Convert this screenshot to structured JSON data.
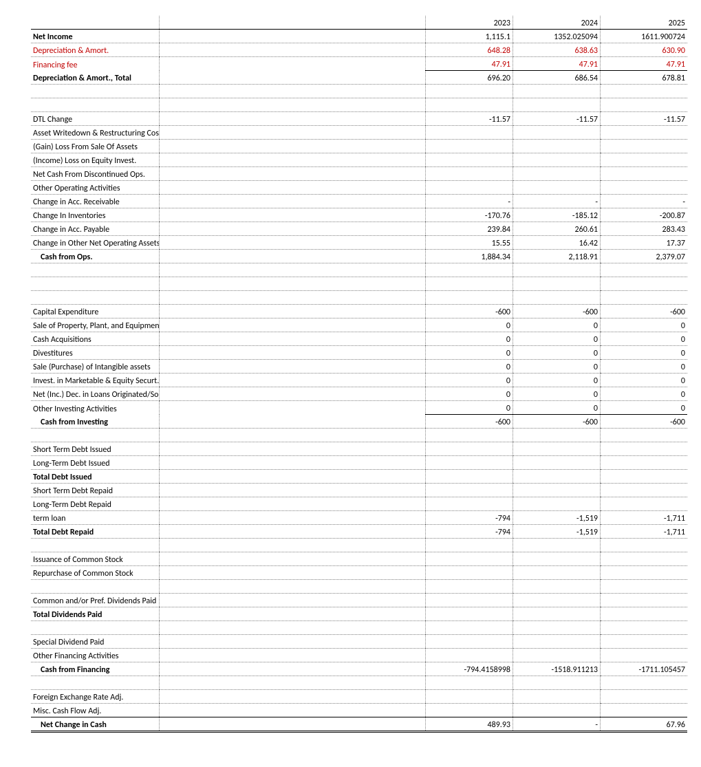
{
  "years": [
    "2023",
    "2024",
    "2025"
  ],
  "rows": [
    {
      "label": "",
      "class": "hdr-row",
      "v": [
        "2023",
        "2024",
        "2025"
      ],
      "labelClass": ""
    },
    {
      "label": "Net Income",
      "class": "dotted-bottom",
      "labelClass": "bold",
      "v": [
        "1,115.1",
        "1352.025094",
        "1611.900724"
      ]
    },
    {
      "label": "Depreciation & Amort.",
      "class": "dotted-bottom",
      "labelClass": "red",
      "v": [
        "648.28",
        "638.63",
        "630.90"
      ],
      "valClass": "red"
    },
    {
      "label": "Financing fee",
      "class": "",
      "labelClass": "red",
      "v": [
        "47.91",
        "47.91",
        "47.91"
      ],
      "valClass": "red"
    },
    {
      "label": "Depreciation & Amort., Total",
      "class": "dotted-bottom subtot",
      "labelClass": "bold",
      "v": [
        "696.20",
        "686.54",
        "678.81"
      ]
    },
    {
      "label": "",
      "class": "dotted-bottom empty-row",
      "v": [
        "",
        "",
        ""
      ]
    },
    {
      "label": "",
      "class": "dotted-bottom empty-row",
      "v": [
        "",
        "",
        ""
      ]
    },
    {
      "label": "DTL Change",
      "class": "dotted-bottom",
      "v": [
        "-11.57",
        "-11.57",
        "-11.57"
      ]
    },
    {
      "label": "Asset Writedown & Restructuring Costs",
      "class": "dotted-bottom",
      "v": [
        "",
        "",
        ""
      ]
    },
    {
      "label": "(Gain) Loss From Sale Of Assets",
      "class": "dotted-bottom",
      "v": [
        "",
        "",
        ""
      ]
    },
    {
      "label": "(Income) Loss on Equity Invest.",
      "class": "dotted-bottom",
      "v": [
        "",
        "",
        ""
      ]
    },
    {
      "label": "Net Cash From Discontinued Ops.",
      "class": "dotted-bottom",
      "v": [
        "",
        "",
        ""
      ]
    },
    {
      "label": "Other Operating Activities",
      "class": "dotted-bottom",
      "v": [
        "",
        "",
        ""
      ]
    },
    {
      "label": "Change in Acc. Receivable",
      "class": "dotted-bottom",
      "v": [
        "-",
        "-",
        "-"
      ]
    },
    {
      "label": "Change In Inventories",
      "class": "dotted-bottom",
      "v": [
        "-170.76",
        "-185.12",
        "-200.87"
      ]
    },
    {
      "label": "Change in Acc. Payable",
      "class": "dotted-bottom",
      "v": [
        "239.84",
        "260.61",
        "283.43"
      ]
    },
    {
      "label": "Change in Other Net Operating Assets",
      "class": "dotted-bottom",
      "v": [
        "15.55",
        "16.42",
        "17.37"
      ]
    },
    {
      "label": "Cash from Ops.",
      "class": "dotted-bottom",
      "labelClass": "bold indent1",
      "v": [
        "1,884.34",
        "2,118.91",
        "2,379.07"
      ]
    },
    {
      "label": "",
      "class": "dotted-bottom empty-row",
      "v": [
        "",
        "",
        ""
      ]
    },
    {
      "label": "",
      "class": "dotted-bottom empty-row",
      "v": [
        "",
        "",
        ""
      ]
    },
    {
      "label": "",
      "class": "dotted-bottom empty-row",
      "v": [
        "",
        "",
        ""
      ]
    },
    {
      "label": "Capital Expenditure",
      "class": "dotted-bottom",
      "v": [
        "-600",
        "-600",
        "-600"
      ]
    },
    {
      "label": "Sale of Property, Plant, and Equipment",
      "class": "dotted-bottom",
      "v": [
        "0",
        "0",
        "0"
      ]
    },
    {
      "label": "Cash Acquisitions",
      "class": "dotted-bottom",
      "v": [
        "0",
        "0",
        "0"
      ]
    },
    {
      "label": "Divestitures",
      "class": "dotted-bottom",
      "v": [
        "0",
        "0",
        "0"
      ]
    },
    {
      "label": "Sale (Purchase) of Intangible assets",
      "class": "dotted-bottom",
      "v": [
        "0",
        "0",
        "0"
      ]
    },
    {
      "label": "Invest. in Marketable & Equity Securt.",
      "class": "dotted-bottom",
      "v": [
        "0",
        "0",
        "0"
      ]
    },
    {
      "label": "Net (Inc.) Dec. in Loans Originated/Sold",
      "class": "dotted-bottom",
      "v": [
        "0",
        "0",
        "0"
      ]
    },
    {
      "label": "Other Investing Activities",
      "class": "",
      "v": [
        "0",
        "0",
        "0"
      ]
    },
    {
      "label": "Cash from Investing",
      "class": "dotted-bottom subtot",
      "labelClass": "bold indent1",
      "v": [
        "-600",
        "-600",
        "-600"
      ]
    },
    {
      "label": "",
      "class": "dotted-bottom empty-row",
      "v": [
        "",
        "",
        ""
      ]
    },
    {
      "label": "Short Term Debt Issued",
      "class": "dotted-bottom",
      "v": [
        "",
        "",
        ""
      ]
    },
    {
      "label": "Long-Term Debt Issued",
      "class": "dotted-bottom",
      "v": [
        "",
        "",
        ""
      ]
    },
    {
      "label": "Total Debt Issued",
      "class": "dotted-bottom",
      "labelClass": "bold",
      "v": [
        "",
        "",
        ""
      ]
    },
    {
      "label": "Short Term Debt Repaid",
      "class": "dotted-bottom",
      "v": [
        "",
        "",
        ""
      ]
    },
    {
      "label": "Long-Term Debt Repaid",
      "class": "dotted-bottom",
      "v": [
        "",
        "",
        ""
      ]
    },
    {
      "label": "term loan",
      "class": "dotted-bottom",
      "v": [
        "-794",
        "-1,519",
        "-1,711"
      ]
    },
    {
      "label": "Total Debt Repaid",
      "class": "dotted-bottom",
      "labelClass": "bold",
      "v": [
        "-794",
        "-1,519",
        "-1,711"
      ]
    },
    {
      "label": "",
      "class": "dotted-bottom empty-row",
      "v": [
        "",
        "",
        ""
      ]
    },
    {
      "label": "Issuance of Common Stock",
      "class": "dotted-bottom",
      "v": [
        "",
        "",
        ""
      ]
    },
    {
      "label": "Repurchase of Common Stock",
      "class": "dotted-bottom",
      "v": [
        "",
        "",
        ""
      ]
    },
    {
      "label": "",
      "class": "dotted-bottom empty-row",
      "v": [
        "",
        "",
        ""
      ]
    },
    {
      "label": "Common and/or Pref. Dividends Paid",
      "class": "dotted-bottom",
      "v": [
        "",
        "",
        ""
      ]
    },
    {
      "label": "Total Dividends Paid",
      "class": "dotted-bottom",
      "labelClass": "bold",
      "v": [
        "",
        "",
        ""
      ]
    },
    {
      "label": "",
      "class": "dotted-bottom empty-row",
      "v": [
        "",
        "",
        ""
      ]
    },
    {
      "label": "Special Dividend Paid",
      "class": "dotted-bottom",
      "v": [
        "",
        "",
        ""
      ]
    },
    {
      "label": "Other Financing Activities",
      "class": "dotted-bottom",
      "v": [
        "",
        "",
        ""
      ]
    },
    {
      "label": "Cash from Financing",
      "class": "dotted-bottom",
      "labelClass": "bold indent1",
      "v": [
        "-794.4158998",
        "-1518.911213",
        "-1711.105457"
      ]
    },
    {
      "label": "",
      "class": "dotted-bottom empty-row",
      "v": [
        "",
        "",
        ""
      ]
    },
    {
      "label": "Foreign Exchange Rate Adj.",
      "class": "dotted-bottom",
      "v": [
        "",
        "",
        ""
      ]
    },
    {
      "label": "Misc. Cash Flow Adj.",
      "class": "",
      "v": [
        "",
        "",
        ""
      ]
    },
    {
      "label": "Net Change in Cash",
      "class": "dbl-top dbl-bot",
      "labelClass": "bold indent1",
      "v": [
        "489.93",
        "-",
        "67.96"
      ]
    }
  ]
}
